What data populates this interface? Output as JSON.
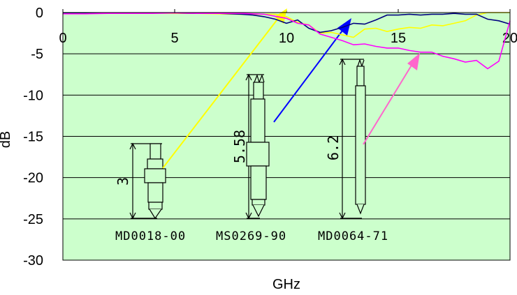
{
  "chart_data": {
    "type": "line",
    "xlabel": "GHz",
    "ylabel": "dB",
    "xlim": [
      0,
      20
    ],
    "ylim": [
      -30,
      0
    ],
    "x_ticks": [
      "0",
      "5",
      "10",
      "15",
      "20"
    ],
    "y_ticks": [
      "0",
      "-5",
      "-10",
      "-15",
      "-20",
      "-25",
      "-30"
    ],
    "grid": "horizontal",
    "plot_background": "#ccffcc",
    "series": [
      {
        "color": "#ffff00",
        "x": [
          0,
          1,
          2,
          3,
          4,
          5,
          6,
          7,
          8,
          9,
          9.5,
          10,
          10.5,
          11,
          11.5,
          12,
          12.5,
          13,
          13.5,
          14,
          14.5,
          15,
          15.5,
          16,
          16.5,
          17,
          17.5,
          18,
          18.5,
          19,
          19.5,
          20
        ],
        "values": [
          -0.05,
          -0.05,
          -0.05,
          -0.05,
          -0.05,
          -0.1,
          -0.1,
          -0.15,
          -0.2,
          -0.2,
          -0.2,
          -0.5,
          -1.2,
          -1.5,
          -2.5,
          -2.4,
          -2.7,
          -3.0,
          -2.0,
          -1.9,
          -2.3,
          -2.0,
          -1.8,
          -1.9,
          -1.5,
          -1.6,
          -1.3,
          -1.0,
          -0.3,
          0,
          0,
          0
        ]
      },
      {
        "color": "#000080",
        "x": [
          0,
          1,
          2,
          3,
          4,
          5,
          6,
          7,
          8,
          8.5,
          9,
          9.5,
          10,
          10.5,
          11,
          11.5,
          12,
          12.5,
          13,
          13.5,
          14,
          14.5,
          15,
          15.5,
          16,
          16.5,
          17,
          17.5,
          18,
          18.5,
          19,
          19.5,
          20
        ],
        "values": [
          -0.05,
          -0.05,
          -0.05,
          -0.05,
          -0.05,
          -0.05,
          -0.1,
          -0.1,
          -0.2,
          -0.3,
          -0.5,
          -0.8,
          -1.3,
          -0.9,
          -1.9,
          -2.4,
          -2.2,
          -1.8,
          -1.3,
          -1.4,
          -0.9,
          -0.3,
          -0.3,
          -0.2,
          -0.3,
          -0.2,
          -0.2,
          -0.1,
          -0.2,
          -0.2,
          -0.8,
          -1.0,
          -1.4
        ]
      },
      {
        "color": "#ff00ff",
        "x": [
          0,
          1,
          2,
          3,
          4,
          5,
          6,
          7,
          8,
          9,
          10,
          10.5,
          11,
          11.5,
          12,
          12.5,
          13,
          13.5,
          14,
          14.5,
          15,
          15.5,
          16,
          16.5,
          17,
          17.5,
          18,
          18.5,
          19,
          19.5,
          20
        ],
        "values": [
          -0.15,
          -0.15,
          -0.1,
          -0.1,
          -0.1,
          -0.05,
          -0.1,
          -0.1,
          -0.1,
          -0.2,
          -0.7,
          -1.3,
          -1.5,
          -2.6,
          -3.0,
          -3.4,
          -3.9,
          -3.8,
          -4.1,
          -4.3,
          -4.3,
          -4.6,
          -4.8,
          -4.8,
          -5.3,
          -5.6,
          -6.0,
          -5.8,
          -6.8,
          -5.9,
          -1.0
        ]
      }
    ],
    "annotations": [
      "MD0018-00",
      "MS0269-90",
      "MD0064-71",
      "3",
      "5.58",
      "6.2"
    ]
  }
}
